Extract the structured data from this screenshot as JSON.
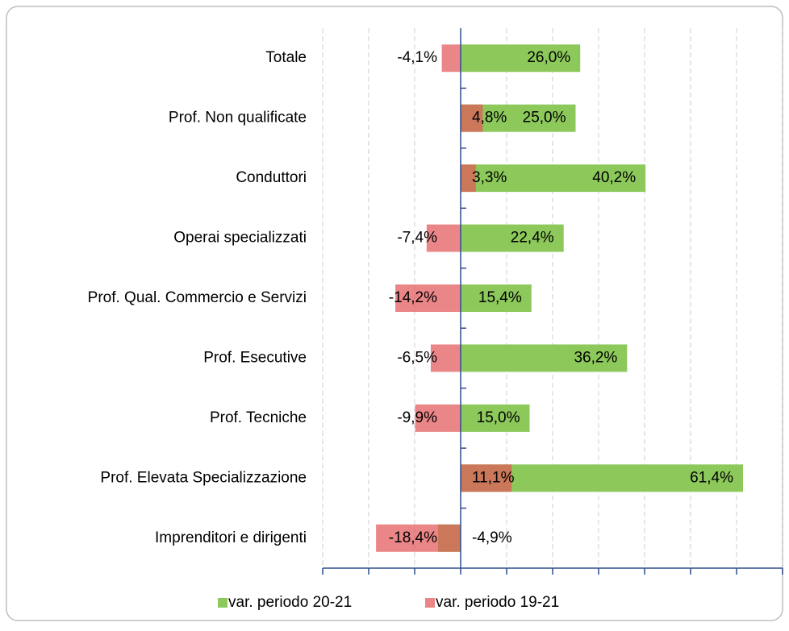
{
  "chart_data": {
    "type": "bar",
    "orientation": "horizontal",
    "overlap": true,
    "categories": [
      "Totale",
      "Prof. Non qualificate",
      "Conduttori",
      "Operai specializzati",
      "Prof. Qual. Commercio e Servizi",
      "Prof. Esecutive",
      "Prof. Tecniche",
      "Prof. Elevata Specializzazione",
      "Imprenditori e dirigenti"
    ],
    "series": [
      {
        "name": "var. periodo 20-21",
        "color": "#8cc85a",
        "values": [
          26.0,
          25.0,
          40.2,
          22.4,
          15.4,
          36.2,
          15.0,
          61.4,
          -4.9
        ],
        "value_labels": [
          "26,0%",
          "25,0%",
          "40,2%",
          "22,4%",
          "15,4%",
          "36,2%",
          "15,0%",
          "61,4%",
          "-4,9%"
        ]
      },
      {
        "name": "var. periodo 19-21",
        "color": "#e2575a",
        "values": [
          -4.1,
          4.8,
          3.3,
          -7.4,
          -14.2,
          -6.5,
          -9.9,
          11.1,
          -18.4
        ],
        "value_labels": [
          "-4,1%",
          "4,8%",
          "3,3%",
          "-7,4%",
          "-14,2%",
          "-6,5%",
          "-9,9%",
          "11,1%",
          "-18,4%"
        ]
      }
    ],
    "xlim": [
      -30,
      70
    ],
    "xticks": [
      -30,
      -20,
      -10,
      0,
      10,
      20,
      30,
      40,
      50,
      60,
      70
    ],
    "grid": true,
    "legend": "bottom"
  }
}
